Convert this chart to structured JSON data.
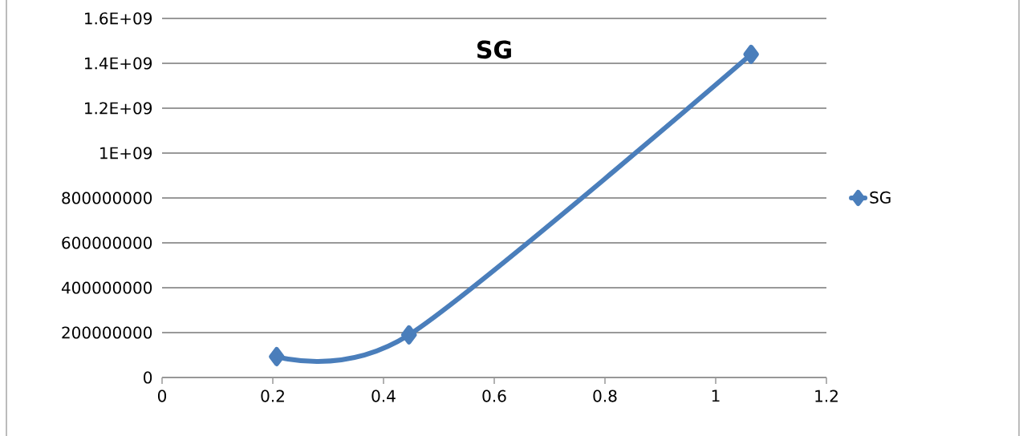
{
  "chart_data": {
    "type": "line",
    "title": "SG",
    "x": [
      0.207,
      0.446,
      1.064
    ],
    "series": [
      {
        "name": "SG",
        "color": "#4a7ebb",
        "values": [
          93000000,
          190000000,
          1440000000
        ]
      }
    ],
    "xlim": [
      0,
      1.2
    ],
    "xticks": [
      0,
      0.2,
      0.4,
      0.6,
      0.8,
      1,
      1.2
    ],
    "ylim": [
      0,
      1600000000
    ],
    "yticks": [
      0,
      200000000,
      400000000,
      600000000,
      800000000,
      {
        "value": 1000000000,
        "label": "1E+09"
      },
      {
        "value": 1200000000,
        "label": "1.2E+09"
      },
      {
        "value": 1400000000,
        "label": "1.4E+09"
      },
      {
        "value": 1600000000,
        "label": "1.6E+09"
      }
    ],
    "grid": "y",
    "legend": "right",
    "marker": "diamond",
    "line_style": "solid"
  }
}
